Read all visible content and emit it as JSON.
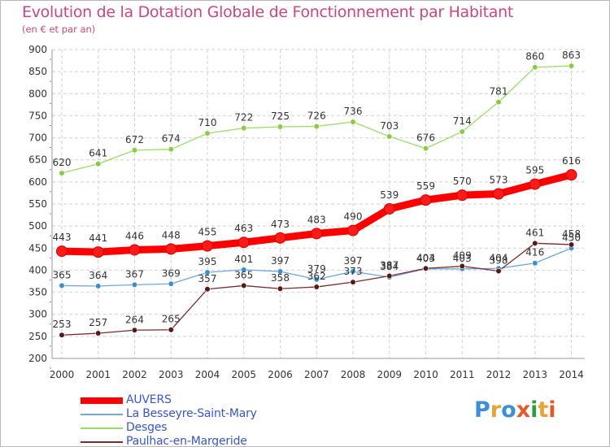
{
  "title": "Evolution de la Dotation Globale de Fonctionnement par Habitant",
  "subtitle": "(en € et par an)",
  "logo_text": "Proxiti",
  "chart_data": {
    "type": "line",
    "title": "Evolution de la Dotation Globale de Fonctionnement par Habitant",
    "subtitle": "(en € et par an)",
    "xlabel": "",
    "ylabel": "",
    "ylim": [
      200,
      900
    ],
    "yticks": [
      200,
      250,
      300,
      350,
      400,
      450,
      500,
      550,
      600,
      650,
      700,
      750,
      800,
      850,
      900
    ],
    "categories": [
      "2000",
      "2001",
      "2002",
      "2003",
      "2004",
      "2005",
      "2006",
      "2007",
      "2008",
      "2009",
      "2010",
      "2011",
      "2012",
      "2013",
      "2014"
    ],
    "legend_position": "bottom-left",
    "series": [
      {
        "name": "AUVERS",
        "color": "#ff0000",
        "values": [
          443,
          441,
          446,
          448,
          455,
          463,
          473,
          483,
          490,
          539,
          559,
          570,
          573,
          595,
          616
        ]
      },
      {
        "name": "La Besseyre-Saint-Mary",
        "color": "#6fa8dc",
        "values": [
          365,
          364,
          367,
          369,
          395,
          401,
          397,
          379,
          397,
          384,
          403,
          403,
          404,
          416,
          450
        ]
      },
      {
        "name": "Desges",
        "color": "#99dd66",
        "values": [
          620,
          641,
          672,
          674,
          710,
          722,
          725,
          726,
          736,
          703,
          676,
          714,
          781,
          860,
          863
        ]
      },
      {
        "name": "Paulhac-en-Margeride",
        "color": "#7a2a2a",
        "values": [
          253,
          257,
          264,
          265,
          357,
          365,
          358,
          362,
          373,
          387,
          404,
          409,
          398,
          461,
          458
        ]
      }
    ]
  }
}
